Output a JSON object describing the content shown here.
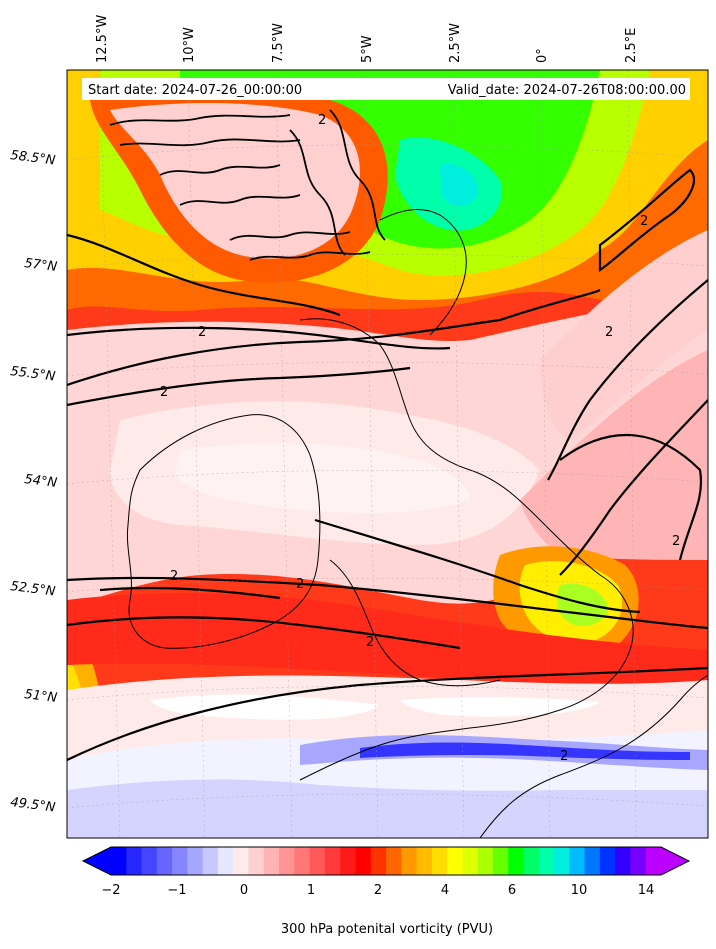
{
  "map": {
    "start_date": "Start date: 2024-07-26_00:00:00",
    "valid_date": "Valid_date: 2024-07-26T08:00:00.00",
    "lon_labels": [
      "12.5°W",
      "10°W",
      "7.5°W",
      "5°W",
      "2.5°W",
      "0°",
      "2.5°E"
    ],
    "lat_labels": [
      "58.5°N",
      "57°N",
      "55.5°N",
      "54°N",
      "52.5°N",
      "51°N",
      "49.5°N"
    ],
    "contour_label": "2",
    "contour_level_pvu": 2
  },
  "colorbar": {
    "title": "300 hPa potenital vorticity (PVU)",
    "ticks": [
      "−2",
      "−1",
      "0",
      "1",
      "2",
      "4",
      "6",
      "10",
      "14"
    ],
    "colors": [
      "#0000ff",
      "#2626ff",
      "#4545ff",
      "#6666ff",
      "#8585ff",
      "#a6a6ff",
      "#c8c8ff",
      "#e6e6ff",
      "#ffeaea",
      "#ffd0d0",
      "#ffb3b3",
      "#ff9494",
      "#ff7777",
      "#ff5858",
      "#ff3a3a",
      "#ff1a1a",
      "#ff0000",
      "#ff3300",
      "#ff6600",
      "#ff9900",
      "#ffbb00",
      "#ffdd00",
      "#ffff00",
      "#ddff00",
      "#aaff00",
      "#66ff00",
      "#00ff00",
      "#00ff66",
      "#00ffaa",
      "#00eedd",
      "#00bbff",
      "#0077ff",
      "#0033ff",
      "#3300ff",
      "#7700ff",
      "#bb00ff"
    ]
  }
}
